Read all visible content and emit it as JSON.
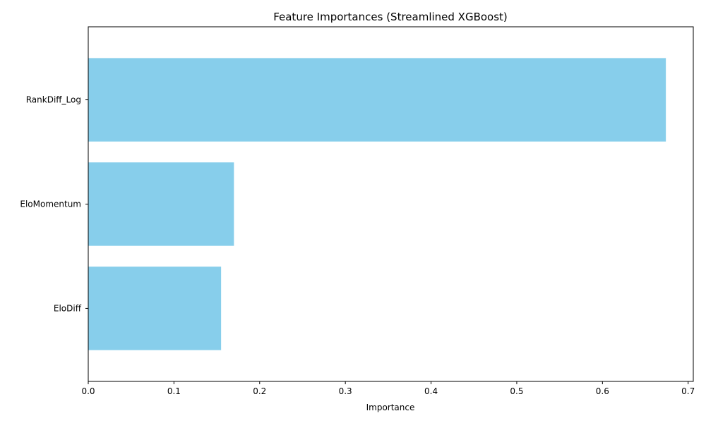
{
  "chart_data": {
    "type": "bar",
    "orientation": "horizontal",
    "title": "Feature Importances (Streamlined XGBoost)",
    "xlabel": "Importance",
    "ylabel": "",
    "categories": [
      "RankDiff_Log",
      "EloMomentum",
      "EloDiff"
    ],
    "values": [
      0.674,
      0.17,
      0.155
    ],
    "xlim": [
      0,
      0.706
    ],
    "xticks": [
      "0.0",
      "0.1",
      "0.2",
      "0.3",
      "0.4",
      "0.5",
      "0.6",
      "0.7"
    ],
    "bar_color": "#87CEEB",
    "grid": false,
    "legend": "none"
  }
}
